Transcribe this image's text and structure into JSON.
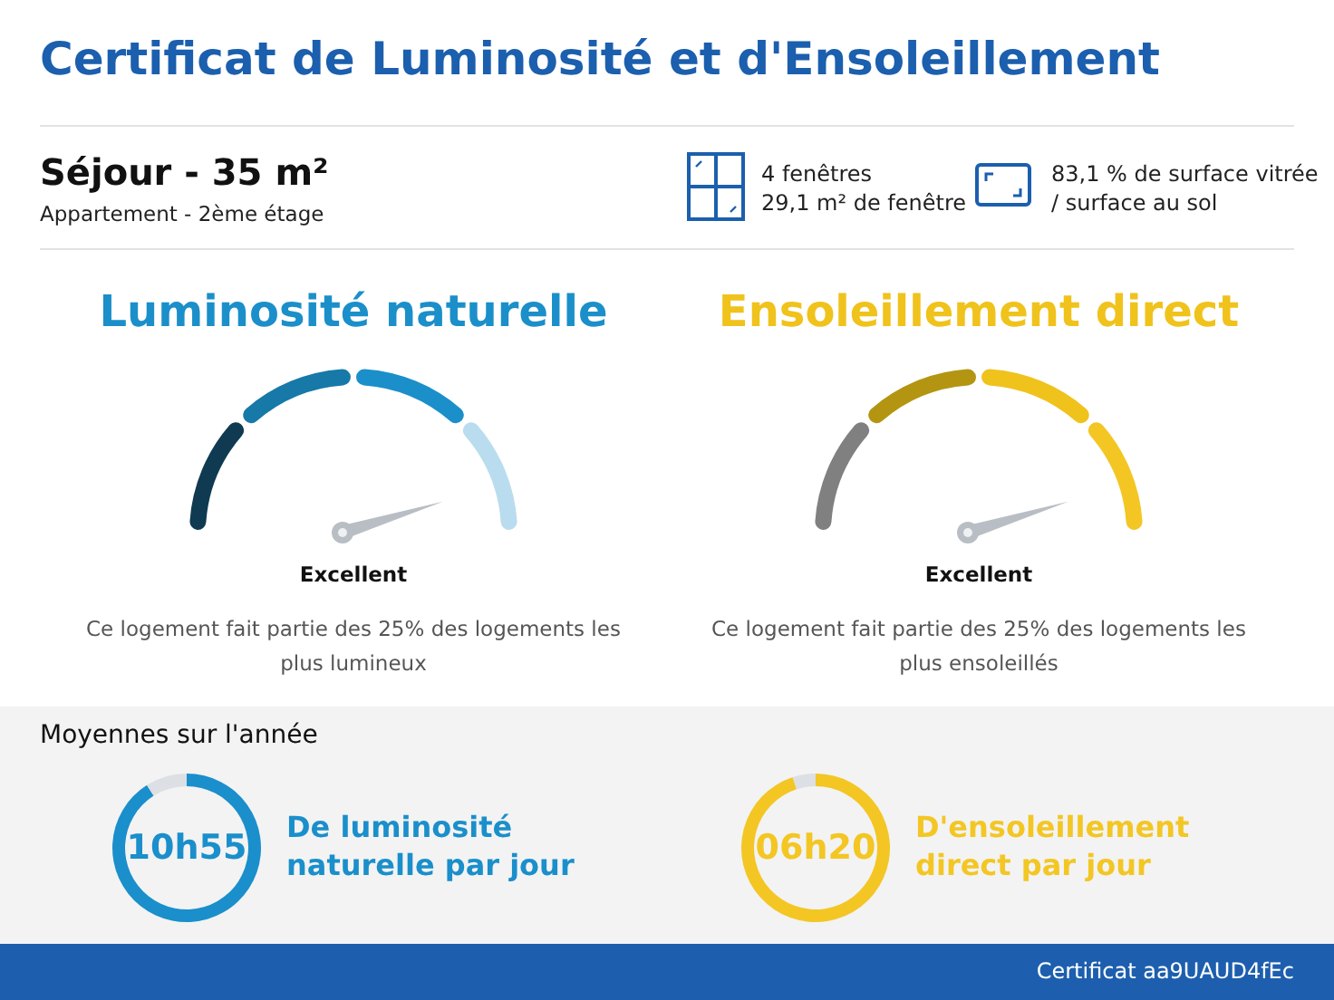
{
  "chart_data": [
    {
      "type": "other",
      "title": "Certificat de Luminosité et d'Ensoleillement",
      "annotations": [
        "Séjour - 35 m²",
        "Appartement - 2ème étage",
        "4 fenêtres",
        "29,1 m² de fenêtre",
        "83,1 % de surface vitrée",
        "/ surface au sol",
        "Moyennes sur l'année",
        "Certificat aa9UAUD4fEc"
      ]
    },
    {
      "type": "other",
      "title": "Luminosité naturelle",
      "colors": [
        "#0f3a52",
        "#1679a8",
        "#1b8fc9",
        "#b9ddee"
      ],
      "annotations": [
        "Excellent",
        "Ce logement fait partie des 25% des logements les plus lumineux"
      ]
    },
    {
      "type": "other",
      "title": "Ensoleillement direct",
      "colors": [
        "#808080",
        "#b39512",
        "#f0c21c",
        "#f3c623"
      ],
      "annotations": [
        "Excellent",
        "Ce logement fait partie des 25% des logements les plus ensoleillés"
      ]
    },
    {
      "type": "donut",
      "categories": [
        null,
        null
      ],
      "values": [
        91,
        9
      ],
      "colors": [
        "#1a8fcb",
        "#dcdfe3"
      ],
      "annotations": [
        "10h55",
        "De luminosité naturelle par jour"
      ]
    },
    {
      "type": "donut",
      "categories": [
        null,
        null
      ],
      "values": [
        95,
        5
      ],
      "colors": [
        "#f3c623",
        "#dcdfe3"
      ],
      "annotations": [
        "06h20",
        "D'ensoleillement direct par jour"
      ]
    }
  ]
}
